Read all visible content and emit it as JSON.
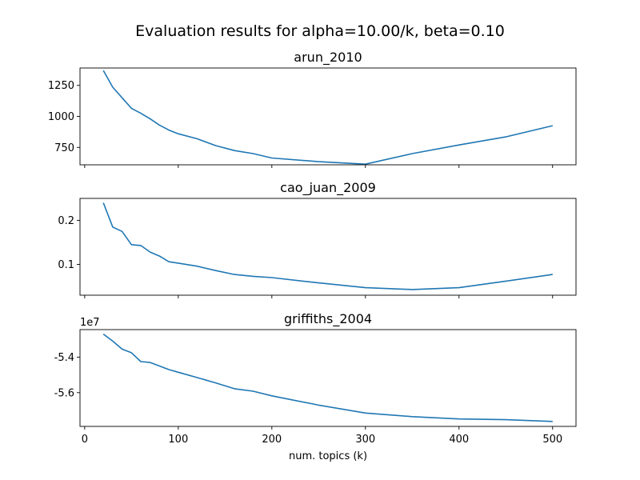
{
  "figure": {
    "suptitle": "Evaluation results for alpha=10.00/k, beta=0.10",
    "xlabel": "num. topics (k)"
  },
  "colors": {
    "line": "#1f77b4",
    "axes": "#000000",
    "background": "#ffffff"
  },
  "chart_data": [
    {
      "type": "line",
      "title": "arun_2010",
      "xlabel": "",
      "ylabel": "",
      "x": [
        20,
        30,
        40,
        50,
        60,
        70,
        80,
        90,
        100,
        120,
        140,
        160,
        180,
        200,
        250,
        300,
        350,
        400,
        450,
        500
      ],
      "y": [
        1370,
        1235,
        1150,
        1065,
        1025,
        980,
        930,
        890,
        860,
        820,
        765,
        725,
        700,
        665,
        635,
        615,
        700,
        770,
        835,
        925
      ],
      "xlim": [
        -5,
        525
      ],
      "ylim": [
        610,
        1390
      ],
      "yticks": [
        750,
        1000,
        1250
      ],
      "ytick_labels": [
        "750",
        "1000",
        "1250"
      ],
      "xticks": [
        0,
        100,
        200,
        300,
        400,
        500
      ],
      "xtick_labels": [],
      "offset_text": "",
      "grid": false
    },
    {
      "type": "line",
      "title": "cao_juan_2009",
      "xlabel": "",
      "ylabel": "",
      "x": [
        20,
        30,
        40,
        50,
        60,
        70,
        80,
        90,
        100,
        120,
        140,
        160,
        180,
        200,
        250,
        300,
        350,
        400,
        450,
        500
      ],
      "y": [
        0.24,
        0.185,
        0.175,
        0.145,
        0.143,
        0.128,
        0.119,
        0.106,
        0.103,
        0.096,
        0.086,
        0.077,
        0.073,
        0.07,
        0.058,
        0.047,
        0.043,
        0.047,
        0.062,
        0.077
      ],
      "xlim": [
        -5,
        525
      ],
      "ylim": [
        0.03,
        0.25
      ],
      "yticks": [
        0.1,
        0.2
      ],
      "ytick_labels": [
        "0.1",
        "0.2"
      ],
      "xticks": [
        0,
        100,
        200,
        300,
        400,
        500
      ],
      "xtick_labels": [],
      "offset_text": "",
      "grid": false
    },
    {
      "type": "line",
      "title": "griffiths_2004",
      "xlabel": "num. topics (k)",
      "ylabel": "",
      "x": [
        20,
        30,
        40,
        50,
        60,
        70,
        80,
        90,
        100,
        120,
        140,
        160,
        180,
        200,
        250,
        300,
        350,
        400,
        450,
        500
      ],
      "y": [
        -5.27,
        -5.31,
        -5.355,
        -5.375,
        -5.425,
        -5.43,
        -5.45,
        -5.47,
        -5.485,
        -5.515,
        -5.545,
        -5.578,
        -5.592,
        -5.618,
        -5.67,
        -5.715,
        -5.735,
        -5.748,
        -5.752,
        -5.762
      ],
      "xlim": [
        -5,
        525
      ],
      "ylim": [
        -5.79,
        -5.245
      ],
      "yticks": [
        -5.6,
        -5.4
      ],
      "ytick_labels": [
        "-5.6",
        "-5.4"
      ],
      "xticks": [
        0,
        100,
        200,
        300,
        400,
        500
      ],
      "xtick_labels": [
        "0",
        "100",
        "200",
        "300",
        "400",
        "500"
      ],
      "offset_text": "1e7",
      "grid": false
    }
  ]
}
